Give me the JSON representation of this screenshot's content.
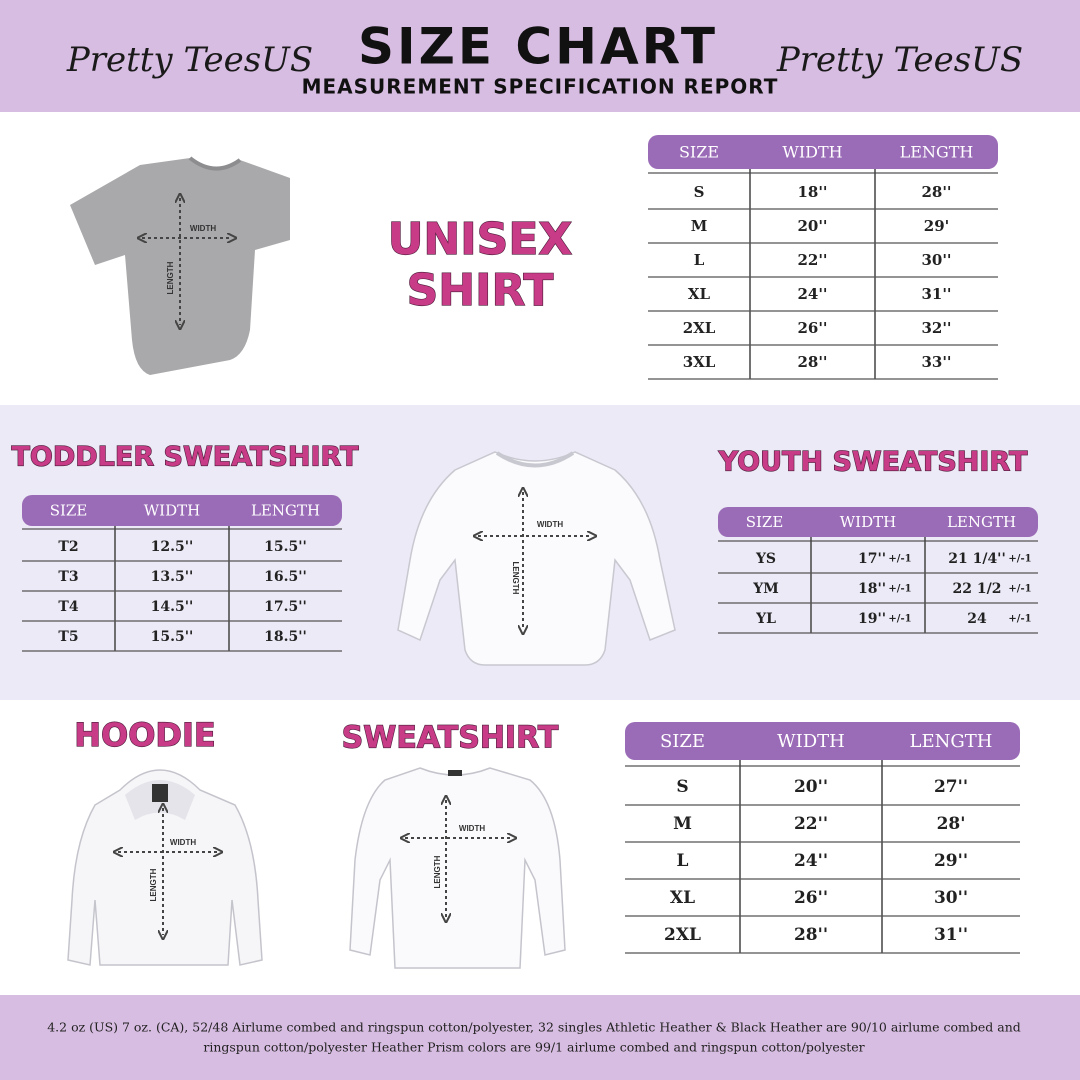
{
  "header": {
    "brand_left": "Pretty TeesUS",
    "title": "SIZE CHART",
    "subtitle": "MEASUREMENT SPECIFICATION REPORT",
    "brand_right": "Pretty TeesUS"
  },
  "unisex": {
    "title_line1": "UNISEX",
    "title_line2": "SHIRT",
    "garment_labels": {
      "width": "WIDTH",
      "length": "LENGTH"
    },
    "table": {
      "columns": [
        "SIZE",
        "WIDTH",
        "LENGTH"
      ],
      "rows": [
        [
          "S",
          "18''",
          "28''"
        ],
        [
          "M",
          "20''",
          "29'"
        ],
        [
          "L",
          "22''",
          "30''"
        ],
        [
          "XL",
          "24''",
          "31''"
        ],
        [
          "2XL",
          "26''",
          "32''"
        ],
        [
          "3XL",
          "28''",
          "33''"
        ]
      ]
    }
  },
  "toddler": {
    "title": "TODDLER SWEATSHIRT",
    "table": {
      "columns": [
        "SIZE",
        "WIDTH",
        "LENGTH"
      ],
      "rows": [
        [
          "T2",
          "12.5''",
          "15.5''"
        ],
        [
          "T3",
          "13.5''",
          "16.5''"
        ],
        [
          "T4",
          "14.5''",
          "17.5''"
        ],
        [
          "T5",
          "15.5''",
          "18.5''"
        ]
      ]
    }
  },
  "kids_garment_labels": {
    "width": "WIDTH",
    "length": "LENGTH"
  },
  "youth": {
    "title": "YOUTH SWEATSHIRT",
    "table": {
      "columns": [
        "SIZE",
        "WIDTH",
        "LENGTH"
      ],
      "rows": [
        [
          "YS",
          "17''",
          "+/-1",
          "21 1/4''",
          "+/-1"
        ],
        [
          "YM",
          "18''",
          "+/-1",
          "22 1/2",
          "+/-1"
        ],
        [
          "YL",
          "19''",
          "+/-1",
          "24",
          "+/-1"
        ]
      ]
    }
  },
  "hoodie": {
    "title": "HOODIE",
    "garment_labels": {
      "width": "WIDTH",
      "length": "LENGTH"
    }
  },
  "sweatshirt": {
    "title": "SWEATSHIRT",
    "garment_labels": {
      "width": "WIDTH",
      "length": "LENGTH"
    },
    "table": {
      "columns": [
        "SIZE",
        "WIDTH",
        "LENGTH"
      ],
      "rows": [
        [
          "S",
          "20''",
          "27''"
        ],
        [
          "M",
          "22''",
          "28'"
        ],
        [
          "L",
          "24''",
          "29''"
        ],
        [
          "XL",
          "26''",
          "30''"
        ],
        [
          "2XL",
          "28''",
          "31''"
        ]
      ]
    }
  },
  "footer": {
    "line1": "4.2 oz (US) 7 oz. (CA), 52/48 Airlume combed and ringspun cotton/polyester, 32 singles Athletic Heather & Black Heather are 90/10 airlume combed and",
    "line2": "ringspun cotton/polyester Heather Prism colors are 99/1 airlume combed and ringspun cotton/polyester"
  }
}
